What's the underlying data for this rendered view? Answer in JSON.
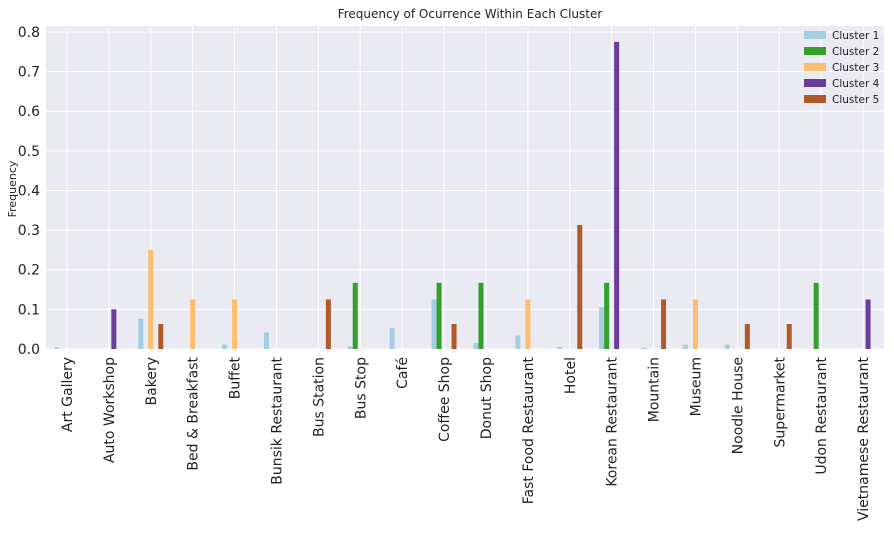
{
  "chart_data": {
    "type": "bar",
    "title": "Frequency of Ocurrence Within Each Cluster",
    "xlabel": "",
    "ylabel": "Frequency",
    "ylim": [
      0,
      0.815
    ],
    "yticks": [
      0.0,
      0.1,
      0.2,
      0.3,
      0.4,
      0.5,
      0.6,
      0.7,
      0.8
    ],
    "ytick_labels": [
      "0.0",
      "0.1",
      "0.2",
      "0.3",
      "0.4",
      "0.5",
      "0.6",
      "0.7",
      "0.8"
    ],
    "grid": true,
    "legend_position": "top-right",
    "categories": [
      "Art Gallery",
      "Auto Workshop",
      "Bakery",
      "Bed & Breakfast",
      "Buffet",
      "Bunsik Restaurant",
      "Bus Station",
      "Bus Stop",
      "Café",
      "Coffee Shop",
      "Donut Shop",
      "Fast Food Restaurant",
      "Hotel",
      "Korean Restaurant",
      "Mountain",
      "Museum",
      "Noodle House",
      "Supermarket",
      "Udon Restaurant",
      "Vietnamese Restaurant"
    ],
    "series": [
      {
        "name": "Cluster 1",
        "color": "#a6cee3",
        "values": [
          0.004,
          0,
          0.076,
          0,
          0.011,
          0.042,
          0,
          0.007,
          0.053,
          0.125,
          0.015,
          0.034,
          0.005,
          0.106,
          0.003,
          0.011,
          0.011,
          0,
          0,
          0
        ]
      },
      {
        "name": "Cluster 2",
        "color": "#33a02c",
        "values": [
          0,
          0,
          0,
          0,
          0,
          0,
          0,
          0.167,
          0,
          0.167,
          0.167,
          0,
          0,
          0.167,
          0,
          0,
          0,
          0,
          0.167,
          0
        ]
      },
      {
        "name": "Cluster 3",
        "color": "#fdbf6f",
        "values": [
          0,
          0,
          0.25,
          0.125,
          0.125,
          0,
          0,
          0,
          0,
          0,
          0,
          0.125,
          0,
          0,
          0,
          0.125,
          0,
          0,
          0,
          0
        ]
      },
      {
        "name": "Cluster 4",
        "color": "#6a3d9a",
        "values": [
          0,
          0.1,
          0,
          0,
          0,
          0,
          0,
          0,
          0,
          0,
          0,
          0,
          0,
          0.775,
          0,
          0,
          0,
          0,
          0,
          0.125
        ]
      },
      {
        "name": "Cluster 5",
        "color": "#b15928",
        "values": [
          0,
          0,
          0.063,
          0,
          0,
          0,
          0.125,
          0,
          0,
          0.063,
          0,
          0,
          0.313,
          0,
          0.125,
          0,
          0.063,
          0.063,
          0,
          0
        ]
      }
    ]
  }
}
